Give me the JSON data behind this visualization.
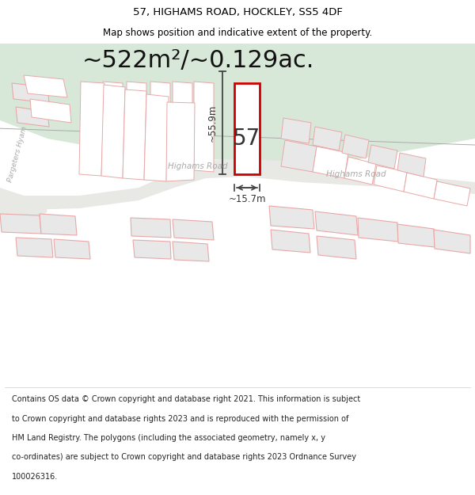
{
  "title_line1": "57, HIGHAMS ROAD, HOCKLEY, SS5 4DF",
  "title_line2": "Map shows position and indicative extent of the property.",
  "area_text": "~522m²/~0.129ac.",
  "bg_color": "#ffffff",
  "green_color": "#d8e8d8",
  "road_color": "#e8e8e4",
  "building_fill": "#e8e8e8",
  "building_ec": "#e8a8a8",
  "plot_outline_ec": "#cc0000",
  "dim_color": "#333333",
  "road_label_color": "#aaaaaa",
  "label_55_9": "~55.9m",
  "label_15_7": "~15.7m",
  "label_57": "57",
  "road_name_center": "Highams Road",
  "road_name_right": "Highams Road",
  "road_name_left": "Pargeters Hyam",
  "footer_lines": [
    "Contains OS data © Crown copyright and database right 2021. This information is subject",
    "to Crown copyright and database rights 2023 and is reproduced with the permission of",
    "HM Land Registry. The polygons (including the associated geometry, namely x, y",
    "co-ordinates) are subject to Crown copyright and database rights 2023 Ordnance Survey",
    "100026316."
  ],
  "title_fontsize": 9.5,
  "subtitle_fontsize": 8.5,
  "area_fontsize": 22,
  "footer_fontsize": 7.0
}
